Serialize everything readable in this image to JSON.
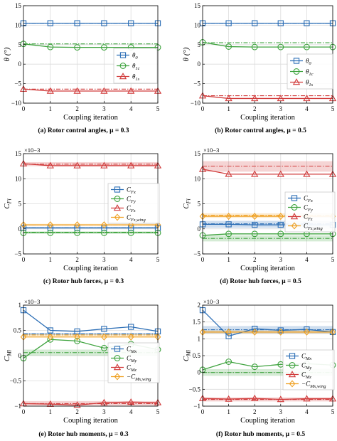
{
  "chart_data": [
    {
      "type": "line",
      "caption": "(a) Rotor control angles,  μ = 0.3",
      "xlabel": "Coupling iteration",
      "ylabel": "θ (°)",
      "x": [
        0,
        1,
        2,
        3,
        4,
        5
      ],
      "xlim": [
        0,
        5
      ],
      "ylim": [
        -10,
        15
      ],
      "yticks": [
        -10,
        -5,
        0,
        5,
        10,
        15
      ],
      "ytick_labels": [
        "−10",
        "−5",
        "0",
        "5",
        "10",
        "15"
      ],
      "grid": true,
      "legend": {
        "position": "right"
      },
      "series": [
        {
          "name": "θ0",
          "color": "#2a6db5",
          "marker": "square",
          "values": [
            10.5,
            10.5,
            10.5,
            10.5,
            10.5,
            10.5
          ],
          "reference": 10.5
        },
        {
          "name": "θ1c",
          "color": "#3ea33e",
          "marker": "circle",
          "values": [
            5.2,
            4.4,
            4.3,
            4.3,
            4.3,
            4.3
          ],
          "reference": 5.2
        },
        {
          "name": "θ1s",
          "color": "#d13b3b",
          "marker": "triangle",
          "values": [
            -6.4,
            -6.9,
            -6.9,
            -6.9,
            -6.9,
            -6.9
          ],
          "reference": -6.4
        }
      ]
    },
    {
      "type": "line",
      "caption": "(b) Rotor control angles,  μ = 0.5",
      "xlabel": "Coupling iteration",
      "ylabel": "θ (°)",
      "x": [
        0,
        1,
        2,
        3,
        4,
        5
      ],
      "xlim": [
        0,
        5
      ],
      "ylim": [
        -10,
        15
      ],
      "yticks": [
        -10,
        -5,
        0,
        5,
        10,
        15
      ],
      "ytick_labels": [
        "−10",
        "−5",
        "0",
        "5",
        "10",
        "15"
      ],
      "grid": true,
      "legend": {
        "position": "right"
      },
      "series": [
        {
          "name": "θ0",
          "color": "#2a6db5",
          "marker": "square",
          "values": [
            10.5,
            10.5,
            10.5,
            10.5,
            10.5,
            10.5
          ],
          "reference": 10.5
        },
        {
          "name": "θ1c",
          "color": "#3ea33e",
          "marker": "circle",
          "values": [
            5.6,
            4.5,
            4.4,
            4.4,
            4.4,
            4.4
          ],
          "reference": 5.5
        },
        {
          "name": "θ1s",
          "color": "#d13b3b",
          "marker": "triangle",
          "values": [
            -8.1,
            -8.8,
            -8.8,
            -8.8,
            -8.8,
            -8.8
          ],
          "reference": -8.1
        }
      ]
    },
    {
      "type": "line",
      "caption": "(c) Rotor hub forces,  μ = 0.3",
      "xlabel": "Coupling iteration",
      "ylabel": "C_Fi",
      "multiplier": "×10−3",
      "x": [
        0,
        1,
        2,
        3,
        4,
        5
      ],
      "xlim": [
        0,
        5
      ],
      "ylim": [
        -5,
        15
      ],
      "yticks": [
        -5,
        0,
        5,
        10,
        15
      ],
      "ytick_labels": [
        "−5",
        "0",
        "5",
        "10",
        "15"
      ],
      "grid": true,
      "legend": {
        "position": "right"
      },
      "series": [
        {
          "name": "C_Fx",
          "color": "#2a6db5",
          "marker": "square",
          "values": [
            0.2,
            0.2,
            0.2,
            0.2,
            0.2,
            0.2
          ],
          "reference": 0.2,
          "band": [
            0.0,
            0.4
          ]
        },
        {
          "name": "C_Fy",
          "color": "#3ea33e",
          "marker": "circle",
          "values": [
            -0.8,
            -0.8,
            -0.8,
            -0.8,
            -0.8,
            -0.8
          ],
          "reference": -0.7,
          "band": [
            -0.9,
            -0.5
          ]
        },
        {
          "name": "C_Fz",
          "color": "#d13b3b",
          "marker": "triangle",
          "values": [
            13.0,
            12.6,
            12.6,
            12.6,
            12.6,
            12.6
          ],
          "reference": 12.9,
          "band": [
            12.5,
            13.3
          ]
        },
        {
          "name": "C_Fz,wing",
          "color": "#f0a020",
          "marker": "diamond",
          "values": [
            0.8,
            0.8,
            0.8,
            0.8,
            0.8,
            0.8
          ],
          "reference": 0.8,
          "band": [
            0.6,
            1.0
          ]
        }
      ]
    },
    {
      "type": "line",
      "caption": "(d) Rotor hub forces,  μ = 0.5",
      "xlabel": "Coupling iteration",
      "ylabel": "C_Fi",
      "multiplier": "×10−3",
      "x": [
        0,
        1,
        2,
        3,
        4,
        5
      ],
      "xlim": [
        0,
        5
      ],
      "ylim": [
        -5,
        15
      ],
      "yticks": [
        -5,
        0,
        5,
        10,
        15
      ],
      "ytick_labels": [
        "−5",
        "0",
        "5",
        "10",
        "15"
      ],
      "grid": true,
      "legend": {
        "position": "right"
      },
      "series": [
        {
          "name": "C_Fx",
          "color": "#2a6db5",
          "marker": "square",
          "values": [
            0.9,
            0.9,
            0.8,
            0.8,
            0.8,
            0.8
          ],
          "reference": 1.0,
          "band": [
            0.2,
            1.6
          ]
        },
        {
          "name": "C_Fy",
          "color": "#3ea33e",
          "marker": "circle",
          "values": [
            -1.3,
            -1.0,
            -1.0,
            -1.0,
            -1.0,
            -1.0
          ],
          "reference": -1.9,
          "band": [
            -2.5,
            -1.3
          ]
        },
        {
          "name": "C_Fz",
          "color": "#d13b3b",
          "marker": "triangle",
          "values": [
            11.9,
            10.9,
            10.9,
            10.9,
            10.9,
            10.9
          ],
          "reference": 12.5,
          "band": [
            11.4,
            13.5
          ]
        },
        {
          "name": "C_Fz,wing",
          "color": "#f0a020",
          "marker": "diamond",
          "values": [
            2.5,
            2.5,
            2.5,
            2.5,
            2.5,
            2.5
          ],
          "reference": 2.7,
          "band": [
            2.2,
            3.1
          ]
        }
      ]
    },
    {
      "type": "line",
      "caption": "(e) Rotor hub moments,  μ = 0.3",
      "xlabel": "Coupling iteration",
      "ylabel": "C_Mi",
      "multiplier": "×10−3",
      "x": [
        0,
        1,
        2,
        3,
        4,
        5
      ],
      "xlim": [
        0,
        5
      ],
      "ylim": [
        -1,
        1
      ],
      "yticks": [
        -1,
        -0.5,
        0,
        0.5,
        1
      ],
      "ytick_labels": [
        "−1",
        "−0.5",
        "0",
        "0.5",
        "1"
      ],
      "grid": true,
      "legend": {
        "position": "right"
      },
      "series": [
        {
          "name": "C_Mx",
          "color": "#2a6db5",
          "marker": "square",
          "values": [
            0.9,
            0.5,
            0.48,
            0.53,
            0.57,
            0.48
          ],
          "reference": 0.43,
          "band": [
            0.41,
            0.45
          ]
        },
        {
          "name": "C_My",
          "color": "#3ea33e",
          "marker": "circle",
          "values": [
            -0.05,
            0.32,
            0.29,
            0.15,
            0.23,
            0.12
          ],
          "reference": 0.06,
          "band": [
            0.0,
            0.12
          ]
        },
        {
          "name": "C_Mz",
          "color": "#d13b3b",
          "marker": "triangle",
          "values": [
            -0.95,
            -0.96,
            -0.98,
            -0.93,
            -0.92,
            -0.93
          ],
          "reference": -0.95,
          "band": [
            -0.99,
            -0.9
          ]
        },
        {
          "name": "−C_Mx,wing",
          "color": "#f0a020",
          "marker": "diamond",
          "values": [
            0.37,
            0.37,
            0.37,
            0.37,
            0.37,
            0.37
          ],
          "reference": 0.41,
          "band": [
            0.39,
            0.43
          ]
        }
      ]
    },
    {
      "type": "line",
      "caption": "(f) Rotor hub moments,  μ = 0.5",
      "xlabel": "Coupling iteration",
      "ylabel": "C_Mi",
      "multiplier": "×10−3",
      "x": [
        0,
        1,
        2,
        3,
        4,
        5
      ],
      "xlim": [
        0,
        5
      ],
      "ylim": [
        -1,
        2
      ],
      "yticks": [
        -1,
        -0.5,
        0,
        0.5,
        1,
        1.5,
        2
      ],
      "ytick_labels": [
        "−1",
        "−0.5",
        "0",
        "0.5",
        "1",
        "1.5",
        "2"
      ],
      "grid": true,
      "legend": {
        "position": "right"
      },
      "series": [
        {
          "name": "C_Mx",
          "color": "#2a6db5",
          "marker": "square",
          "values": [
            1.85,
            1.08,
            1.3,
            1.25,
            1.28,
            1.2
          ],
          "reference": 1.27,
          "band": [
            1.15,
            1.38
          ]
        },
        {
          "name": "C_My",
          "color": "#3ea33e",
          "marker": "circle",
          "values": [
            0.08,
            0.32,
            0.17,
            0.24,
            0.26,
            0.22
          ],
          "reference": 0.0,
          "band": [
            -0.1,
            0.1
          ]
        },
        {
          "name": "C_Mz",
          "color": "#d13b3b",
          "marker": "triangle",
          "values": [
            -0.77,
            -0.79,
            -0.77,
            -0.8,
            -0.78,
            -0.78
          ],
          "reference": -0.8,
          "band": [
            -0.86,
            -0.74
          ]
        },
        {
          "name": "−C_Mx,wing",
          "color": "#f0a020",
          "marker": "diamond",
          "values": [
            1.2,
            1.2,
            1.2,
            1.2,
            1.2,
            1.2
          ],
          "reference": 1.2,
          "band": [
            1.15,
            1.25
          ]
        }
      ]
    }
  ]
}
